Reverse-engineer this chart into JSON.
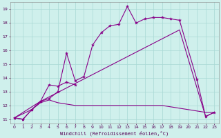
{
  "bg_color": "#cff0ec",
  "line_color": "#880088",
  "grid_color": "#a8d8d4",
  "xlabel": "Windchill (Refroidissement éolien,°C)",
  "xlim": [
    -0.5,
    23.5
  ],
  "ylim": [
    10.7,
    19.5
  ],
  "yticks": [
    11,
    12,
    13,
    14,
    15,
    16,
    17,
    18,
    19
  ],
  "xticks": [
    0,
    1,
    2,
    3,
    4,
    5,
    6,
    7,
    8,
    9,
    10,
    11,
    12,
    13,
    14,
    15,
    16,
    17,
    18,
    19,
    20,
    21,
    22,
    23
  ],
  "line_main_x": [
    0,
    1,
    2,
    3,
    4,
    5,
    6,
    7,
    8,
    9,
    10,
    11,
    12,
    13,
    14,
    15,
    16,
    17,
    18,
    19,
    21,
    22,
    23
  ],
  "line_main_y": [
    11.1,
    11.0,
    11.7,
    12.3,
    12.5,
    13.0,
    15.8,
    13.8,
    14.1,
    16.4,
    17.3,
    17.8,
    17.9,
    19.2,
    18.0,
    18.3,
    18.4,
    18.4,
    18.3,
    18.2,
    13.9,
    11.2,
    11.5
  ],
  "line_short_x": [
    0,
    1,
    2,
    3,
    4,
    5,
    6,
    7
  ],
  "line_short_y": [
    11.1,
    11.0,
    11.7,
    12.3,
    13.5,
    13.4,
    13.7,
    13.5
  ],
  "line_diag_x": [
    0,
    3,
    19,
    22,
    23
  ],
  "line_diag_y": [
    11.1,
    12.3,
    17.5,
    11.2,
    11.5
  ],
  "line_flat_x": [
    0,
    2,
    3,
    4,
    5,
    6,
    7,
    8,
    9,
    10,
    11,
    12,
    13,
    14,
    15,
    16,
    17,
    18,
    19,
    22,
    23
  ],
  "line_flat_y": [
    11.1,
    11.7,
    12.2,
    12.4,
    12.2,
    12.1,
    12.0,
    12.0,
    12.0,
    12.0,
    12.0,
    12.0,
    12.0,
    12.0,
    12.0,
    12.0,
    12.0,
    11.9,
    11.8,
    11.5,
    11.5
  ]
}
